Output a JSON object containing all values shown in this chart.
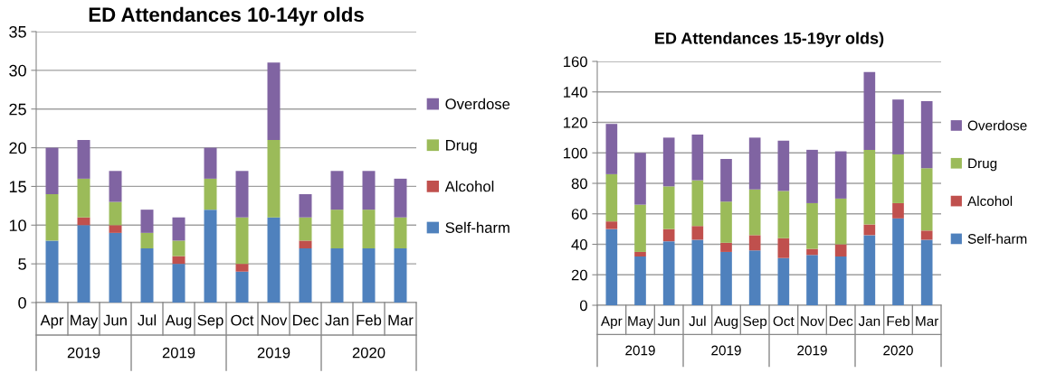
{
  "chart_data": [
    {
      "type": "bar",
      "stacked": true,
      "title": "ED Attendances 10-14yr olds",
      "categories": [
        "Apr",
        "May",
        "Jun",
        "Jul",
        "Aug",
        "Sep",
        "Oct",
        "Nov",
        "Dec",
        "Jan",
        "Feb",
        "Mar"
      ],
      "series": [
        {
          "name": "Self-harm",
          "color": "#4f81bd",
          "values": [
            8,
            10,
            9,
            7,
            5,
            12,
            4,
            11,
            7,
            7,
            7,
            7
          ]
        },
        {
          "name": "Alcohol",
          "color": "#c0504d",
          "values": [
            0,
            1,
            1,
            0,
            1,
            0,
            1,
            0,
            1,
            0,
            0,
            0
          ]
        },
        {
          "name": "Drug",
          "color": "#9bbb59",
          "values": [
            6,
            5,
            3,
            2,
            2,
            4,
            6,
            10,
            3,
            5,
            5,
            4
          ]
        },
        {
          "name": "Overdose",
          "color": "#8064a2",
          "values": [
            6,
            5,
            4,
            3,
            3,
            4,
            6,
            10,
            3,
            5,
            5,
            5
          ]
        }
      ],
      "annotations": [
        "2019",
        "2019",
        "2019",
        "2020"
      ],
      "ylim": [
        0,
        35
      ],
      "yticks": [
        0,
        5,
        10,
        15,
        20,
        25,
        30,
        35
      ],
      "grid": "y",
      "legend": "right"
    },
    {
      "type": "bar",
      "stacked": true,
      "title": "ED Attendances 15-19yr olds)",
      "categories": [
        "Apr",
        "May",
        "Jun",
        "Jul",
        "Aug",
        "Sep",
        "Oct",
        "Nov",
        "Dec",
        "Jan",
        "Feb",
        "Mar"
      ],
      "series": [
        {
          "name": "Self-harm",
          "color": "#4f81bd",
          "values": [
            50,
            32,
            42,
            43,
            35,
            36,
            31,
            33,
            32,
            46,
            57,
            43
          ]
        },
        {
          "name": "Alcohol",
          "color": "#c0504d",
          "values": [
            5,
            3,
            8,
            9,
            6,
            10,
            13,
            4,
            8,
            7,
            10,
            6
          ]
        },
        {
          "name": "Drug",
          "color": "#9bbb59",
          "values": [
            31,
            31,
            28,
            30,
            27,
            30,
            31,
            30,
            30,
            49,
            32,
            41
          ]
        },
        {
          "name": "Overdose",
          "color": "#8064a2",
          "values": [
            33,
            34,
            32,
            30,
            28,
            34,
            33,
            35,
            31,
            51,
            36,
            44
          ]
        }
      ],
      "annotations": [
        "2019",
        "2019",
        "2019",
        "2020"
      ],
      "ylim": [
        0,
        160
      ],
      "yticks": [
        0,
        20,
        40,
        60,
        80,
        100,
        120,
        140,
        160
      ],
      "grid": "y",
      "legend": "right"
    }
  ]
}
